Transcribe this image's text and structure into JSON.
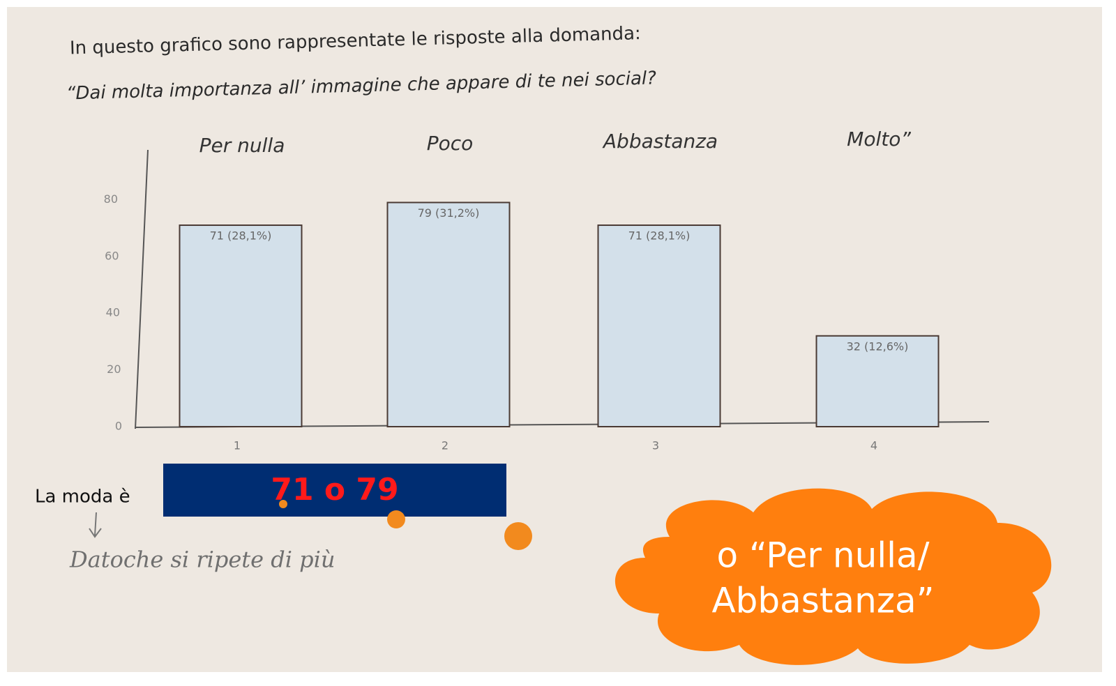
{
  "chart_data": {
    "type": "bar",
    "title": "In questo grafico sono rappresentate le risposte alla domanda:",
    "subtitle": "“Dai molta importanza all’ immagine che appare di te nei social?",
    "categories": [
      "1",
      "2",
      "3",
      "4"
    ],
    "category_labels": [
      "Per nulla",
      "Poco",
      "Abbastanza",
      "Molto”"
    ],
    "values": [
      71,
      79,
      71,
      32
    ],
    "value_labels": [
      "71 (28,1%)",
      "79 (31,2%)",
      "71 (28,1%)",
      "32 (12,6%)"
    ],
    "color": "#d3e0ea",
    "ylim": [
      0,
      100
    ],
    "yticks": [
      0,
      20,
      40,
      60,
      80
    ]
  },
  "mode_label": "La moda  è",
  "mode_answer": "71 o 79",
  "handwritten_note": "Datoche si ripete di più",
  "callout": [
    "o “Per nulla/",
    "Abbastanza”"
  ]
}
